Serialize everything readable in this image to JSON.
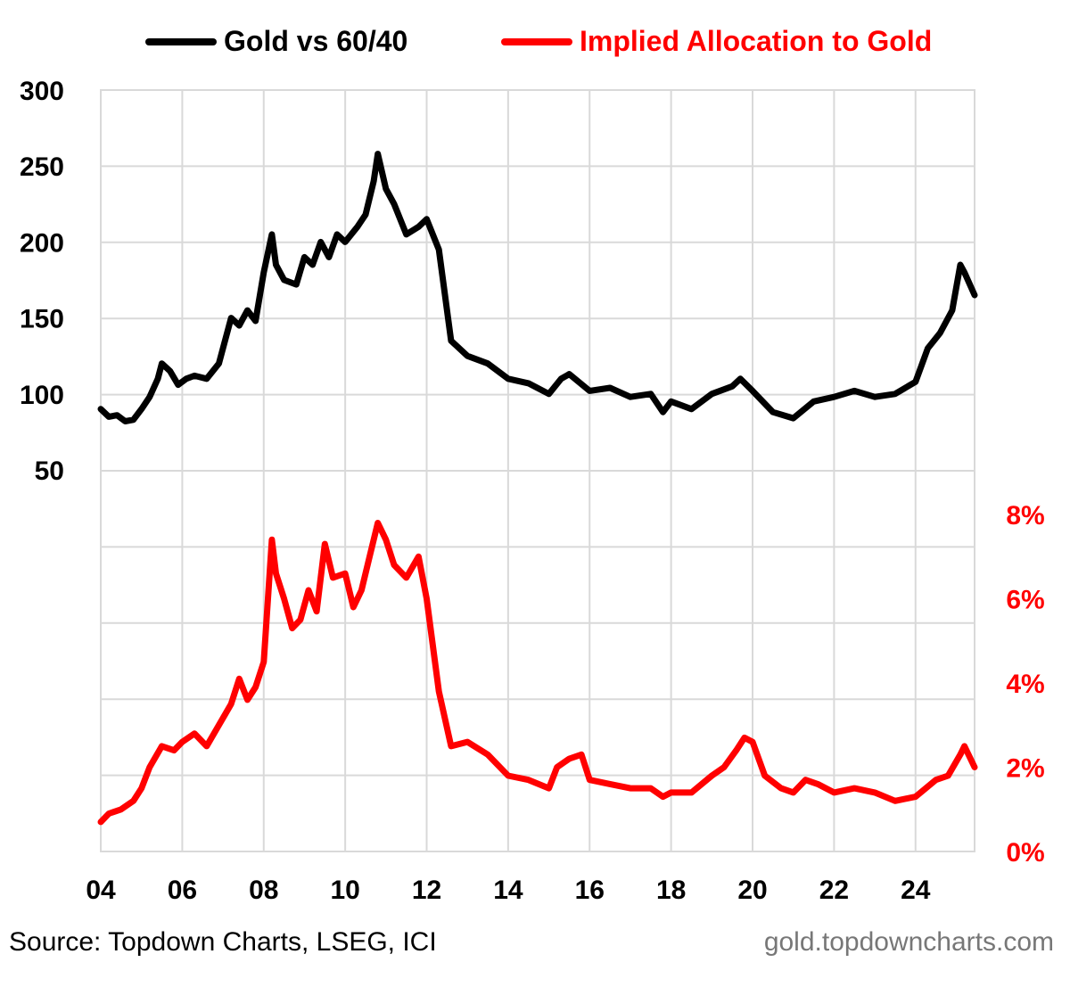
{
  "chart_data": {
    "type": "line",
    "legend": [
      {
        "name": "Gold vs 60/40",
        "color": "#000000"
      },
      {
        "name": "Implied Allocation to Gold",
        "color": "#ff0000"
      }
    ],
    "x_ticks": [
      "04",
      "06",
      "08",
      "10",
      "12",
      "14",
      "16",
      "18",
      "20",
      "22",
      "24"
    ],
    "x_range": [
      2004.0,
      2025.45
    ],
    "left_axis": {
      "ticks": [
        "300",
        "250",
        "200",
        "150",
        "100",
        "50"
      ],
      "ylim": [
        50,
        300
      ],
      "color": "#000000"
    },
    "right_axis": {
      "ticks": [
        "8%",
        "6%",
        "4%",
        "2%",
        "0%"
      ],
      "ylim": [
        0,
        8
      ],
      "color": "#ff0000"
    },
    "grid": true,
    "series": [
      {
        "name": "Gold vs 60/40",
        "axis": "left",
        "x": [
          2004.0,
          2004.2,
          2004.4,
          2004.6,
          2004.8,
          2005.0,
          2005.2,
          2005.4,
          2005.5,
          2005.7,
          2005.9,
          2006.1,
          2006.3,
          2006.6,
          2006.9,
          2007.2,
          2007.4,
          2007.6,
          2007.8,
          2008.0,
          2008.2,
          2008.3,
          2008.5,
          2008.8,
          2009.0,
          2009.2,
          2009.4,
          2009.6,
          2009.8,
          2010.0,
          2010.3,
          2010.5,
          2010.7,
          2010.8,
          2011.0,
          2011.2,
          2011.5,
          2011.8,
          2012.0,
          2012.3,
          2012.6,
          2013.0,
          2013.5,
          2014.0,
          2014.5,
          2015.0,
          2015.3,
          2015.5,
          2016.0,
          2016.5,
          2017.0,
          2017.5,
          2017.8,
          2018.0,
          2018.5,
          2019.0,
          2019.5,
          2019.7,
          2020.0,
          2020.5,
          2021.0,
          2021.5,
          2022.0,
          2022.5,
          2023.0,
          2023.5,
          2024.0,
          2024.3,
          2024.6,
          2024.9,
          2025.1,
          2025.2,
          2025.45
        ],
        "values": [
          90,
          85,
          86,
          82,
          83,
          90,
          98,
          110,
          120,
          115,
          106,
          110,
          112,
          110,
          120,
          150,
          145,
          155,
          148,
          180,
          205,
          185,
          175,
          172,
          190,
          185,
          200,
          190,
          205,
          200,
          210,
          218,
          240,
          258,
          235,
          225,
          205,
          210,
          215,
          195,
          135,
          125,
          120,
          110,
          107,
          100,
          110,
          113,
          102,
          104,
          98,
          100,
          88,
          95,
          90,
          100,
          105,
          110,
          102,
          88,
          84,
          95,
          98,
          102,
          98,
          100,
          108,
          130,
          140,
          155,
          185,
          180,
          165
        ]
      },
      {
        "name": "Implied Allocation to Gold",
        "axis": "right",
        "x": [
          2004.0,
          2004.2,
          2004.5,
          2004.8,
          2005.0,
          2005.2,
          2005.5,
          2005.8,
          2006.0,
          2006.3,
          2006.6,
          2006.9,
          2007.2,
          2007.4,
          2007.6,
          2007.8,
          2008.0,
          2008.2,
          2008.3,
          2008.5,
          2008.7,
          2008.9,
          2009.1,
          2009.3,
          2009.5,
          2009.7,
          2010.0,
          2010.2,
          2010.4,
          2010.6,
          2010.8,
          2011.0,
          2011.2,
          2011.5,
          2011.8,
          2012.0,
          2012.3,
          2012.6,
          2013.0,
          2013.5,
          2014.0,
          2014.5,
          2015.0,
          2015.2,
          2015.5,
          2015.8,
          2016.0,
          2016.5,
          2017.0,
          2017.5,
          2017.8,
          2018.0,
          2018.5,
          2019.0,
          2019.3,
          2019.6,
          2019.8,
          2020.0,
          2020.3,
          2020.7,
          2021.0,
          2021.3,
          2021.6,
          2022.0,
          2022.5,
          2023.0,
          2023.5,
          2024.0,
          2024.5,
          2024.8,
          2025.1,
          2025.2,
          2025.45
        ],
        "values": [
          0.7,
          0.9,
          1.0,
          1.2,
          1.5,
          2.0,
          2.5,
          2.4,
          2.6,
          2.8,
          2.5,
          3.0,
          3.5,
          4.1,
          3.6,
          3.9,
          4.5,
          7.4,
          6.6,
          6.0,
          5.3,
          5.5,
          6.2,
          5.7,
          7.3,
          6.5,
          6.6,
          5.8,
          6.2,
          7.0,
          7.8,
          7.4,
          6.8,
          6.5,
          7.0,
          6.0,
          3.8,
          2.5,
          2.6,
          2.3,
          1.8,
          1.7,
          1.5,
          2.0,
          2.2,
          2.3,
          1.7,
          1.6,
          1.5,
          1.5,
          1.3,
          1.4,
          1.4,
          1.8,
          2.0,
          2.4,
          2.7,
          2.6,
          1.8,
          1.5,
          1.4,
          1.7,
          1.6,
          1.4,
          1.5,
          1.4,
          1.2,
          1.3,
          1.7,
          1.8,
          2.3,
          2.5,
          2.0
        ]
      }
    ],
    "source_text": "Source: Topdown Charts, LSEG, ICI",
    "website_text": "gold.topdowncharts.com"
  }
}
